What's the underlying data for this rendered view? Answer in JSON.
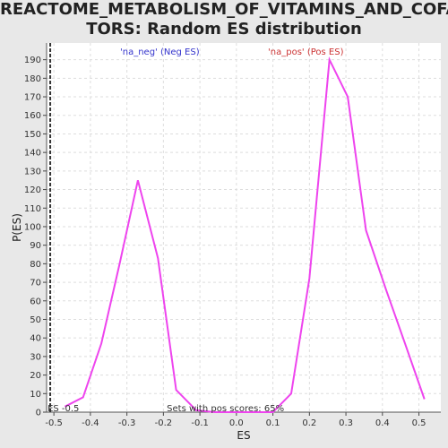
{
  "title_lines": [
    "REACTOME_METABOLISM_OF_VITAMINS_AND_COFAC",
    "TORS: Random ES distribution"
  ],
  "colors": {
    "curve": "#ee44ee",
    "neg_legend": "#3333cc",
    "pos_legend": "#cc3333",
    "marker_line": "#333333",
    "grid": "#dddddd",
    "plot_background": "#ffffff",
    "page_background": "#e8e8e8"
  },
  "chart_data": {
    "type": "line",
    "title": "REACTOME_METABOLISM_OF_VITAMINS_AND_COFACTORS: Random ES distribution",
    "xlabel": "ES",
    "ylabel": "P(ES)",
    "xlim": [
      -0.52,
      0.56
    ],
    "ylim": [
      0,
      199
    ],
    "grid": true,
    "x_ticks": [
      -0.5,
      -0.4,
      -0.3,
      -0.2,
      -0.1,
      0.0,
      0.1,
      0.2,
      0.3,
      0.4,
      0.5
    ],
    "x_tick_labels": [
      "-0.5",
      "-0.4",
      "-0.3",
      "-0.2",
      "-0.1",
      "0.0",
      "0.1",
      "0.2",
      "0.3",
      "0.4",
      "0.5"
    ],
    "y_ticks": [
      0,
      10,
      20,
      30,
      40,
      50,
      60,
      70,
      80,
      90,
      100,
      110,
      120,
      130,
      140,
      150,
      160,
      170,
      180,
      190
    ],
    "y_tick_labels": [
      "0",
      "10",
      "20",
      "30",
      "40",
      "50",
      "60",
      "70",
      "80",
      "90",
      "100",
      "110",
      "120",
      "130",
      "140",
      "150",
      "160",
      "170",
      "180",
      "190"
    ],
    "series": [
      {
        "x": [
          -0.47,
          -0.42,
          -0.37,
          -0.32,
          -0.27,
          -0.215,
          -0.165,
          -0.11,
          -0.06,
          0.0,
          0.05,
          0.1,
          0.15,
          0.2,
          0.255,
          0.305,
          0.355,
          0.41,
          0.46,
          0.515
        ],
        "values": [
          3,
          8,
          37,
          80,
          125,
          83,
          12,
          1,
          0,
          0,
          0,
          0,
          10,
          72,
          190,
          170,
          98,
          66,
          38,
          7
        ]
      }
    ],
    "legend": [
      {
        "label": "'na_neg' (Neg ES)",
        "color": "#3333cc",
        "x": -0.21
      },
      {
        "label": "'na_pos' (Pos ES)",
        "color": "#cc3333",
        "x": 0.19
      }
    ],
    "marker_line_x": -0.51,
    "annotations": {
      "es_label": "ES -0.5",
      "es_label_x": -0.51,
      "pos_scores_label": "Sets with pos scores: 65%",
      "pos_scores_x": -0.03
    }
  }
}
